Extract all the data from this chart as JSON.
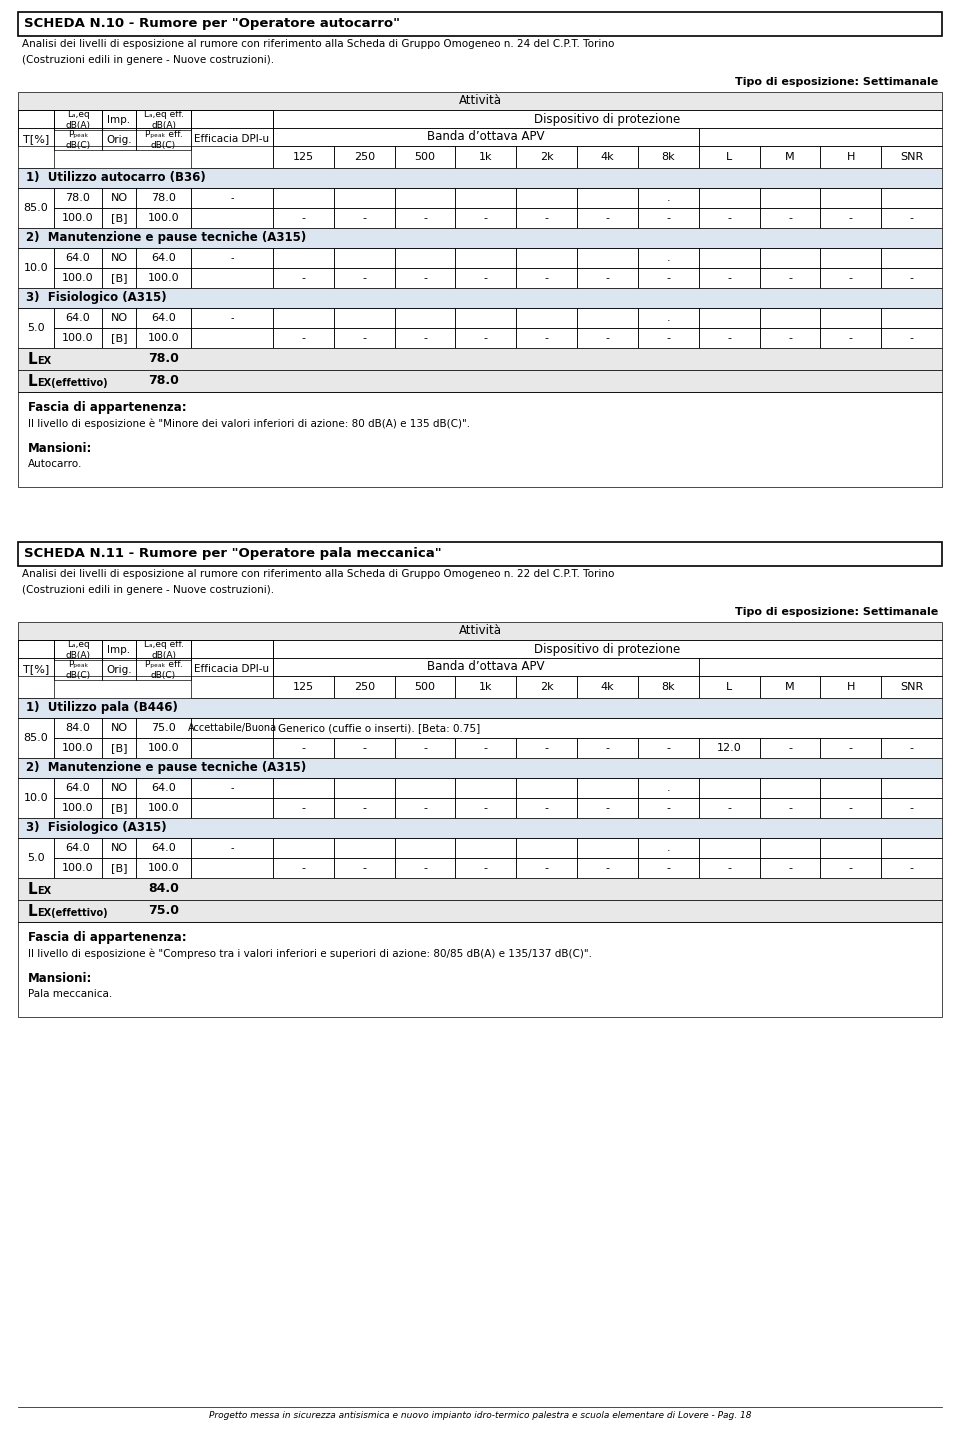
{
  "page_bg": "#ffffff",
  "header_bg": "#e8e8e8",
  "section_bg": "#dce6f1",
  "lex_bg": "#e8e8e8",
  "footer_italic": "Progetto messa in sicurezza antisismica e nuovo impianto idro-termico palestra e scuola elementare di Lovere - Pag. 18",
  "scheda1": {
    "title": "SCHEDA N.10 - Rumore per \"Operatore autocarro\"",
    "subtitle1": "Analisi dei livelli di esposizione al rumore con riferimento alla Scheda di Gruppo Omogeneo n. 24 del C.P.T. Torino",
    "subtitle2": "(Costruzioni edili in genere - Nuove costruzioni).",
    "tipo": "Tipo di esposizione: Settimanale",
    "sections": [
      {
        "label": "1)  Utilizzo autocarro (B36)",
        "t_val": "85.0",
        "rows": [
          {
            "laeq": "78.0",
            "imp": "NO",
            "laeq_eff": "78.0",
            "efficacia": "-",
            "vals": [
              "",
              "",
              "",
              "",
              "",
              "",
              ".",
              "",
              "",
              "",
              ""
            ],
            "span_text": false
          },
          {
            "laeq": "100.0",
            "imp": "[B]",
            "laeq_eff": "100.0",
            "efficacia": "",
            "vals": [
              "-",
              "-",
              "-",
              "-",
              "-",
              "-",
              "-",
              "-",
              "-",
              "-",
              "-"
            ],
            "span_text": false
          }
        ]
      },
      {
        "label": "2)  Manutenzione e pause tecniche (A315)",
        "t_val": "10.0",
        "rows": [
          {
            "laeq": "64.0",
            "imp": "NO",
            "laeq_eff": "64.0",
            "efficacia": "-",
            "vals": [
              "",
              "",
              "",
              "",
              "",
              "",
              ".",
              "",
              "",
              "",
              ""
            ],
            "span_text": false
          },
          {
            "laeq": "100.0",
            "imp": "[B]",
            "laeq_eff": "100.0",
            "efficacia": "",
            "vals": [
              "-",
              "-",
              "-",
              "-",
              "-",
              "-",
              "-",
              "-",
              "-",
              "-",
              "-"
            ],
            "span_text": false
          }
        ]
      },
      {
        "label": "3)  Fisiologico (A315)",
        "t_val": "5.0",
        "rows": [
          {
            "laeq": "64.0",
            "imp": "NO",
            "laeq_eff": "64.0",
            "efficacia": "-",
            "vals": [
              "",
              "",
              "",
              "",
              "",
              "",
              ".",
              "",
              "",
              "",
              ""
            ],
            "span_text": false
          },
          {
            "laeq": "100.0",
            "imp": "[B]",
            "laeq_eff": "100.0",
            "efficacia": "",
            "vals": [
              "-",
              "-",
              "-",
              "-",
              "-",
              "-",
              "-",
              "-",
              "-",
              "-",
              "-"
            ],
            "span_text": false
          }
        ]
      }
    ],
    "lex_val": "78.0",
    "lex_eff_val": "78.0",
    "fascia_title": "Fascia di appartenenza:",
    "fascia_text": "Il livello di esposizione è \"Minore dei valori inferiori di azione: 80 dB(A) e 135 dB(C)\".",
    "mansioni_title": "Mansioni:",
    "mansioni_text": "Autocarro."
  },
  "scheda2": {
    "title": "SCHEDA N.11 - Rumore per \"Operatore pala meccanica\"",
    "subtitle1": "Analisi dei livelli di esposizione al rumore con riferimento alla Scheda di Gruppo Omogeneo n. 22 del C.P.T. Torino",
    "subtitle2": "(Costruzioni edili in genere - Nuove costruzioni).",
    "tipo": "Tipo di esposizione: Settimanale",
    "sections": [
      {
        "label": "1)  Utilizzo pala (B446)",
        "t_val": "85.0",
        "rows": [
          {
            "laeq": "84.0",
            "imp": "NO",
            "laeq_eff": "75.0",
            "efficacia": "Accettabile/Buona",
            "vals": [
              "Generico (cuffie o inserti). [Beta: 0.75]",
              "",
              "",
              "",
              "",
              "",
              "",
              "",
              "",
              "",
              ""
            ],
            "span_text": true
          },
          {
            "laeq": "100.0",
            "imp": "[B]",
            "laeq_eff": "100.0",
            "efficacia": "",
            "vals": [
              "-",
              "-",
              "-",
              "-",
              "-",
              "-",
              "-",
              "12.0",
              "-",
              "-",
              "-"
            ],
            "span_text": false
          }
        ]
      },
      {
        "label": "2)  Manutenzione e pause tecniche (A315)",
        "t_val": "10.0",
        "rows": [
          {
            "laeq": "64.0",
            "imp": "NO",
            "laeq_eff": "64.0",
            "efficacia": "-",
            "vals": [
              "",
              "",
              "",
              "",
              "",
              "",
              ".",
              "",
              "",
              "",
              ""
            ],
            "span_text": false
          },
          {
            "laeq": "100.0",
            "imp": "[B]",
            "laeq_eff": "100.0",
            "efficacia": "",
            "vals": [
              "-",
              "-",
              "-",
              "-",
              "-",
              "-",
              "-",
              "-",
              "-",
              "-",
              "-"
            ],
            "span_text": false
          }
        ]
      },
      {
        "label": "3)  Fisiologico (A315)",
        "t_val": "5.0",
        "rows": [
          {
            "laeq": "64.0",
            "imp": "NO",
            "laeq_eff": "64.0",
            "efficacia": "-",
            "vals": [
              "",
              "",
              "",
              "",
              "",
              "",
              ".",
              "",
              "",
              "",
              ""
            ],
            "span_text": false
          },
          {
            "laeq": "100.0",
            "imp": "[B]",
            "laeq_eff": "100.0",
            "efficacia": "",
            "vals": [
              "-",
              "-",
              "-",
              "-",
              "-",
              "-",
              "-",
              "-",
              "-",
              "-",
              "-"
            ],
            "span_text": false
          }
        ]
      }
    ],
    "lex_val": "84.0",
    "lex_eff_val": "75.0",
    "fascia_title": "Fascia di appartenenza:",
    "fascia_text": "Il livello di esposizione è \"Compreso tra i valori inferiori e superiori di azione: 80/85 dB(A) e 135/137 dB(C)\".",
    "mansioni_title": "Mansioni:",
    "mansioni_text": "Pala meccanica."
  }
}
